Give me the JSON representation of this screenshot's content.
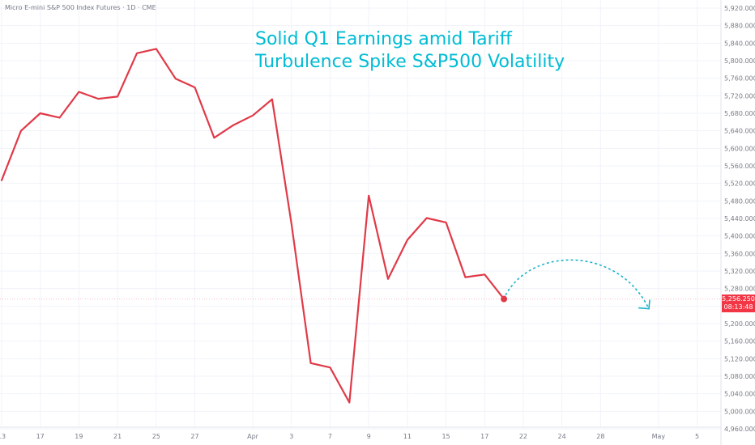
{
  "header": {
    "symbol": "Micro E-mini S&P 500 Index Futures · 1D · CME"
  },
  "headline": {
    "line1": "Solid Q1 Earnings amid Tariff",
    "line2": "Turbulence Spike S&P500 Volatility"
  },
  "price_tag": {
    "price": "5,256.250",
    "countdown": "08:13:48"
  },
  "colors": {
    "series": "#e03a48",
    "projection": "#1fb3c9",
    "headline": "#00bcd4",
    "grid": "#f0f3fa",
    "axis_text": "#787b86"
  },
  "chart_data": {
    "type": "line",
    "title": "",
    "xlabel": "",
    "ylabel": "",
    "ylim": [
      4960,
      5920
    ],
    "grid": true,
    "y_ticks": [
      "4,960.000",
      "5,000.000",
      "5,040.000",
      "5,080.000",
      "5,120.000",
      "5,160.000",
      "5,200.000",
      "5,240.000",
      "5,280.000",
      "5,320.000",
      "5,360.000",
      "5,400.000",
      "5,440.000",
      "5,480.000",
      "5,520.000",
      "5,560.000",
      "5,600.000",
      "5,640.000",
      "5,680.000",
      "5,720.000",
      "5,760.000",
      "5,800.000",
      "5,840.000",
      "5,880.000",
      "5,920.000"
    ],
    "x_ticks": [
      {
        "label": "13",
        "date": "2025-03-13"
      },
      {
        "label": "17",
        "date": "2025-03-17"
      },
      {
        "label": "19",
        "date": "2025-03-19"
      },
      {
        "label": "21",
        "date": "2025-03-21"
      },
      {
        "label": "25",
        "date": "2025-03-25"
      },
      {
        "label": "27",
        "date": "2025-03-27"
      },
      {
        "label": "Apr",
        "date": "2025-04-01"
      },
      {
        "label": "3",
        "date": "2025-04-03"
      },
      {
        "label": "7",
        "date": "2025-04-07"
      },
      {
        "label": "9",
        "date": "2025-04-09"
      },
      {
        "label": "11",
        "date": "2025-04-11"
      },
      {
        "label": "15",
        "date": "2025-04-15"
      },
      {
        "label": "17",
        "date": "2025-04-17"
      },
      {
        "label": "22",
        "date": "2025-04-22"
      },
      {
        "label": "24",
        "date": "2025-04-24"
      },
      {
        "label": "28",
        "date": "2025-04-28"
      },
      {
        "label": "May",
        "date": "2025-05-01"
      },
      {
        "label": "5",
        "date": "2025-05-05"
      }
    ],
    "series": [
      {
        "points": [
          {
            "date": "2025-03-13",
            "close": 5527
          },
          {
            "date": "2025-03-14",
            "close": 5640
          },
          {
            "date": "2025-03-17",
            "close": 5680
          },
          {
            "date": "2025-03-18",
            "close": 5670
          },
          {
            "date": "2025-03-19",
            "close": 5729
          },
          {
            "date": "2025-03-20",
            "close": 5713
          },
          {
            "date": "2025-03-21",
            "close": 5718
          },
          {
            "date": "2025-03-24",
            "close": 5817
          },
          {
            "date": "2025-03-25",
            "close": 5827
          },
          {
            "date": "2025-03-26",
            "close": 5759
          },
          {
            "date": "2025-03-27",
            "close": 5739
          },
          {
            "date": "2025-03-28",
            "close": 5624
          },
          {
            "date": "2025-03-31",
            "close": 5653
          },
          {
            "date": "2025-04-01",
            "close": 5675
          },
          {
            "date": "2025-04-02",
            "close": 5712
          },
          {
            "date": "2025-04-03",
            "close": 5428
          },
          {
            "date": "2025-04-04",
            "close": 5110
          },
          {
            "date": "2025-04-07",
            "close": 5100
          },
          {
            "date": "2025-04-08",
            "close": 5020
          },
          {
            "date": "2025-04-09",
            "close": 5492
          },
          {
            "date": "2025-04-10",
            "close": 5302
          },
          {
            "date": "2025-04-11",
            "close": 5391
          },
          {
            "date": "2025-04-14",
            "close": 5441
          },
          {
            "date": "2025-04-15",
            "close": 5431
          },
          {
            "date": "2025-04-16",
            "close": 5306
          },
          {
            "date": "2025-04-17",
            "close": 5312
          },
          {
            "date": "2025-04-21",
            "close": 5256.25
          }
        ]
      }
    ],
    "projection": {
      "style": "dashed-arc-arrow",
      "start": {
        "date": "2025-04-21",
        "close": 5265
      },
      "peak": {
        "date": "2025-04-25",
        "close": 5362
      },
      "end": {
        "date": "2025-04-30",
        "close": 5234
      }
    }
  }
}
